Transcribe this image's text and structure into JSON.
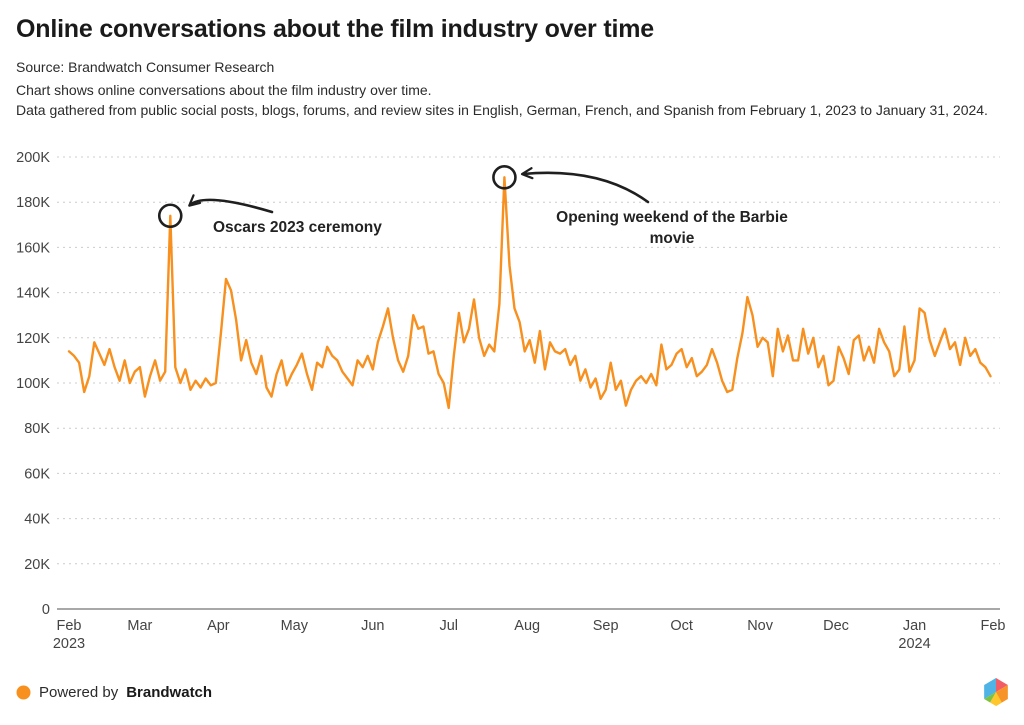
{
  "header": {
    "title": "Online conversations about the film industry over time",
    "source": "Source: Brandwatch Consumer Research",
    "description_line1": "Chart shows online conversations about the film industry over time.",
    "description_line2": "Data gathered from public social posts, blogs, forums, and review sites in English, German, French, and Spanish from February 1, 2023 to January 31, 2024."
  },
  "footer": {
    "powered_by": "Powered by",
    "brand": "Brandwatch",
    "logo_colors": {
      "blue": "#4FB3E5",
      "coral": "#F25C66",
      "orange": "#F79428",
      "yellow": "#FFC72C",
      "green": "#7DC242"
    }
  },
  "chart_data": {
    "type": "line",
    "title": "Online conversations about the film industry over time",
    "series_name": "Online conversations",
    "line_color": "#F7901E",
    "annotation_color": "#1f1f1f",
    "grid_color": "#cccccc",
    "axis_color": "#a8a8a8",
    "label_color": "#444444",
    "grid": "on",
    "legend_position": "none",
    "start_date": "2023-02-01",
    "end_date": "2024-01-31",
    "ylim": [
      0,
      200000
    ],
    "y_ticks": [
      {
        "label": "0",
        "value": 0
      },
      {
        "label": "20K",
        "value": 20
      },
      {
        "label": "40K",
        "value": 40
      },
      {
        "label": "60K",
        "value": 60
      },
      {
        "label": "80K",
        "value": 80
      },
      {
        "label": "100K",
        "value": 100
      },
      {
        "label": "120K",
        "value": 120
      },
      {
        "label": "140K",
        "value": 140
      },
      {
        "label": "160K",
        "value": 160
      },
      {
        "label": "180K",
        "value": 180
      },
      {
        "label": "200K",
        "value": 200
      }
    ],
    "x_ticks": [
      {
        "label": "Feb",
        "sublabel": "2023",
        "day": 0
      },
      {
        "label": "Mar",
        "day": 28
      },
      {
        "label": "Apr",
        "day": 59
      },
      {
        "label": "May",
        "day": 89
      },
      {
        "label": "Jun",
        "day": 120
      },
      {
        "label": "Jul",
        "day": 150
      },
      {
        "label": "Aug",
        "day": 181
      },
      {
        "label": "Sep",
        "day": 212
      },
      {
        "label": "Oct",
        "day": 242
      },
      {
        "label": "Nov",
        "day": 273
      },
      {
        "label": "Dec",
        "day": 303
      },
      {
        "label": "Jan",
        "sublabel": "2024",
        "day": 334
      },
      {
        "label": "Feb",
        "day": 365
      }
    ],
    "sample_interval_days": 2,
    "values_unit": "thousands of conversations",
    "values_thousands": [
      114,
      112,
      109,
      96,
      103,
      118,
      113,
      108,
      115,
      107,
      101,
      110,
      100,
      105,
      107,
      94,
      103,
      110,
      101,
      105,
      174,
      107,
      100,
      106,
      97,
      101,
      98,
      102,
      99,
      100,
      122,
      146,
      141,
      128,
      110,
      119,
      109,
      104,
      112,
      98,
      94,
      104,
      110,
      99,
      104,
      108,
      113,
      104,
      97,
      109,
      107,
      116,
      112,
      110,
      105,
      102,
      99,
      110,
      107,
      112,
      106,
      118,
      125,
      133,
      120,
      110,
      105,
      112,
      130,
      124,
      125,
      113,
      114,
      104,
      100,
      89,
      112,
      131,
      118,
      124,
      137,
      120,
      112,
      117,
      114,
      135,
      191,
      152,
      133,
      127,
      114,
      119,
      109,
      123,
      106,
      118,
      114,
      113,
      115,
      108,
      112,
      101,
      106,
      98,
      102,
      93,
      97,
      109,
      97,
      101,
      90,
      97,
      101,
      103,
      100,
      104,
      99,
      117,
      106,
      108,
      113,
      115,
      107,
      111,
      103,
      105,
      108,
      115,
      109,
      101,
      96,
      97,
      111,
      122,
      138,
      130,
      116,
      120,
      118,
      103,
      124,
      114,
      121,
      110,
      110,
      124,
      113,
      120,
      107,
      112,
      99,
      101,
      116,
      111,
      104,
      119,
      121,
      110,
      116,
      109,
      124,
      118,
      114,
      103,
      106,
      125,
      105,
      110,
      133,
      131,
      119,
      112,
      118,
      124,
      115,
      118,
      108,
      120,
      112,
      115,
      109,
      107,
      103
    ],
    "annotations": [
      {
        "label": "Oscars 2023 ceremony",
        "label_lines": [
          "Oscars 2023 ceremony"
        ],
        "day": 40,
        "value_thousands": 174
      },
      {
        "label": "Opening weekend of the Barbie movie",
        "label_lines": [
          "Opening weekend of the Barbie",
          "movie"
        ],
        "day": 172,
        "value_thousands": 191
      }
    ]
  }
}
